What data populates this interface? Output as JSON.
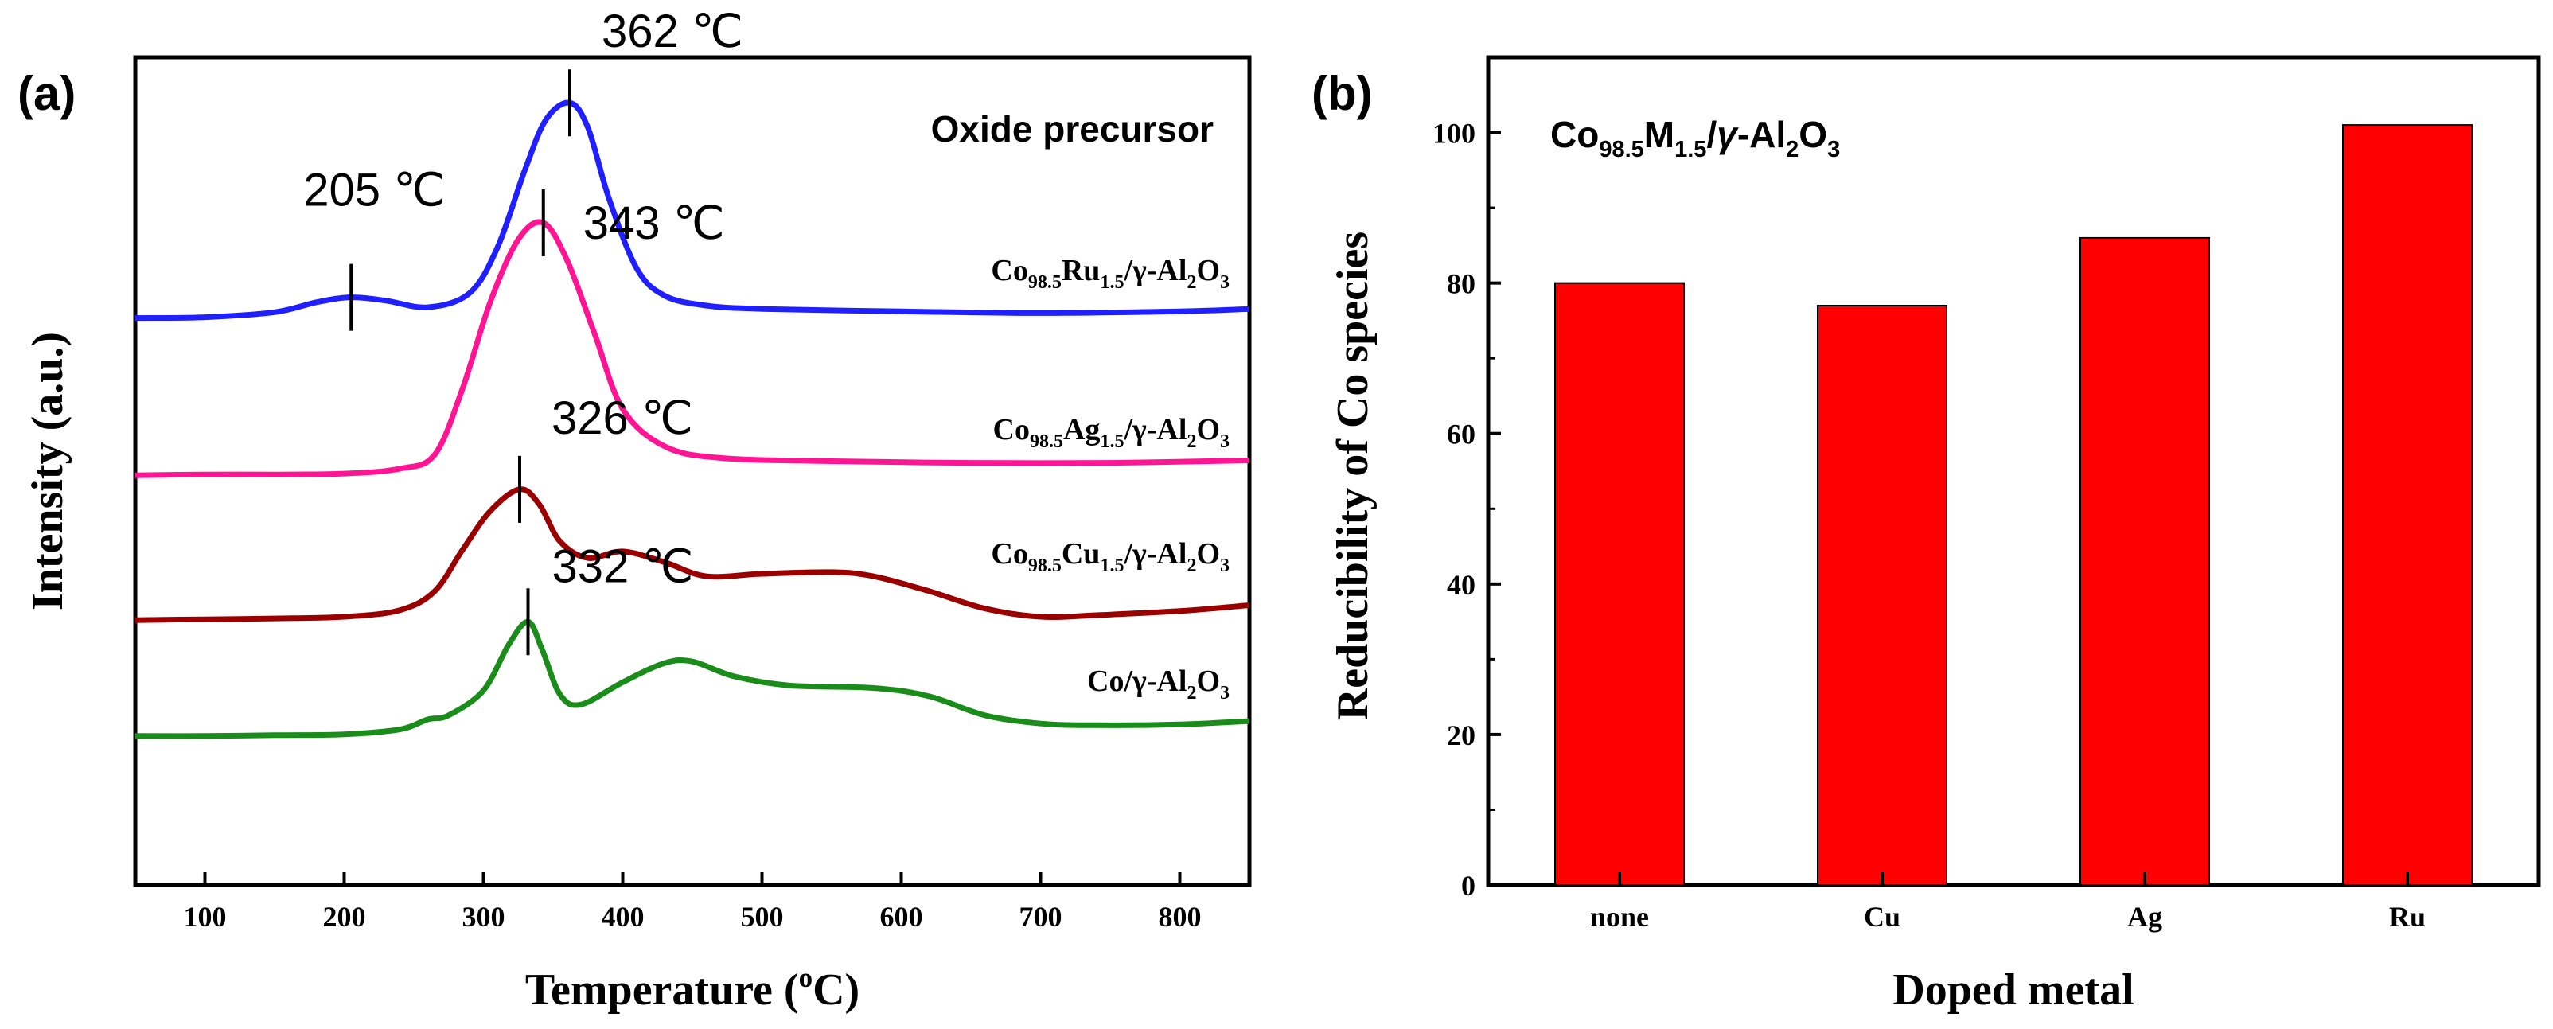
{
  "chart_data": [
    {
      "panel": "(a)",
      "type": "line",
      "title": "Oxide precursor",
      "xlabel": "Temperature (oC)",
      "xlabel_parts": [
        "Temperature (",
        "o",
        "C)"
      ],
      "ylabel": "Intensity (a.u.)",
      "xlim": [
        50,
        850
      ],
      "ylim": [
        0,
        100
      ],
      "x_ticks": [
        100,
        200,
        300,
        400,
        500,
        600,
        700,
        800
      ],
      "y_ticks_shown": false,
      "series": [
        {
          "name": "Co98.5Ru1.5/γ-Al2O3",
          "label_parts": [
            {
              "t": "Co",
              "s": "n"
            },
            {
              "t": "98.5",
              "s": "sub"
            },
            {
              "t": "Ru",
              "s": "n"
            },
            {
              "t": "1.5",
              "s": "sub"
            },
            {
              "t": "/γ-Al",
              "s": "n"
            },
            {
              "t": "2",
              "s": "sub"
            },
            {
              "t": "O",
              "s": "n"
            },
            {
              "t": "3",
              "s": "sub"
            }
          ],
          "color": "#1f1fff",
          "x": [
            50,
            100,
            150,
            180,
            205,
            230,
            260,
            290,
            310,
            330,
            345,
            362,
            375,
            390,
            410,
            430,
            460,
            500,
            600,
            700,
            800,
            850
          ],
          "y": [
            68.5,
            68.6,
            69.2,
            70.4,
            71.0,
            70.6,
            69.8,
            71.5,
            77.0,
            86.5,
            92.5,
            94.5,
            91.5,
            83.0,
            74.5,
            71.2,
            70.0,
            69.6,
            69.3,
            69.1,
            69.3,
            69.6
          ]
        },
        {
          "name": "Co98.5Ag1.5/γ-Al2O3",
          "label_parts": [
            {
              "t": "Co",
              "s": "n"
            },
            {
              "t": "98.5",
              "s": "sub"
            },
            {
              "t": "Ag",
              "s": "n"
            },
            {
              "t": "1.5",
              "s": "sub"
            },
            {
              "t": "/γ-Al",
              "s": "n"
            },
            {
              "t": "2",
              "s": "sub"
            },
            {
              "t": "O",
              "s": "n"
            },
            {
              "t": "3",
              "s": "sub"
            }
          ],
          "color": "#ff1493",
          "x": [
            50,
            100,
            150,
            200,
            240,
            265,
            285,
            305,
            325,
            343,
            360,
            380,
            400,
            430,
            470,
            550,
            650,
            750,
            850
          ],
          "y": [
            49.5,
            49.6,
            49.6,
            49.7,
            50.3,
            52.0,
            60.0,
            70.5,
            78.0,
            80.0,
            75.5,
            66.5,
            57.5,
            53.0,
            51.6,
            51.2,
            51.0,
            51.0,
            51.3
          ]
        },
        {
          "name": "Co98.5Cu1.5/γ-Al2O3",
          "label_parts": [
            {
              "t": "Co",
              "s": "n"
            },
            {
              "t": "98.5",
              "s": "sub"
            },
            {
              "t": "Cu",
              "s": "n"
            },
            {
              "t": "1.5",
              "s": "sub"
            },
            {
              "t": "/γ-Al",
              "s": "n"
            },
            {
              "t": "2",
              "s": "sub"
            },
            {
              "t": "O",
              "s": "n"
            },
            {
              "t": "3",
              "s": "sub"
            }
          ],
          "color": "#9b0000",
          "x": [
            50,
            100,
            150,
            200,
            240,
            265,
            285,
            305,
            326,
            340,
            355,
            375,
            400,
            430,
            460,
            500,
            550,
            580,
            620,
            660,
            700,
            740,
            800,
            850
          ],
          "y": [
            32.0,
            32.1,
            32.2,
            32.4,
            33.2,
            35.5,
            40.5,
            45.2,
            47.8,
            46.0,
            41.5,
            39.5,
            40.3,
            39.0,
            37.3,
            37.6,
            37.8,
            37.3,
            35.5,
            33.4,
            32.4,
            32.6,
            33.1,
            33.8
          ]
        },
        {
          "name": "Co/γ-Al2O3",
          "label_parts": [
            {
              "t": "Co/γ-Al",
              "s": "n"
            },
            {
              "t": "2",
              "s": "sub"
            },
            {
              "t": "O",
              "s": "n"
            },
            {
              "t": "3",
              "s": "sub"
            }
          ],
          "color": "#1a8c1a",
          "x": [
            50,
            100,
            150,
            200,
            240,
            260,
            275,
            300,
            318,
            332,
            342,
            355,
            370,
            400,
            430,
            450,
            480,
            520,
            580,
            620,
            660,
            700,
            740,
            800,
            850
          ],
          "y": [
            18.0,
            18.0,
            18.1,
            18.2,
            18.8,
            20.0,
            20.5,
            23.5,
            29.0,
            31.8,
            28.5,
            23.0,
            21.8,
            24.5,
            26.8,
            27.0,
            25.2,
            24.1,
            23.8,
            22.8,
            20.5,
            19.5,
            19.3,
            19.4,
            19.8
          ]
        }
      ],
      "peak_annotations": [
        {
          "series": 0,
          "x": 205,
          "label": "205 ℃"
        },
        {
          "series": 0,
          "x": 362,
          "label": "362 ℃"
        },
        {
          "series": 1,
          "x": 343,
          "label": "343 ℃"
        },
        {
          "series": 2,
          "x": 326,
          "label": "326 ℃"
        },
        {
          "series": 3,
          "x": 332,
          "label": "332 ℃"
        }
      ]
    },
    {
      "panel": "(b)",
      "type": "bar",
      "annotation": "Co98.5M1.5/γ-Al2O3",
      "annotation_parts": [
        {
          "t": "Co",
          "s": "n"
        },
        {
          "t": "98.5",
          "s": "sub"
        },
        {
          "t": "M",
          "s": "n"
        },
        {
          "t": "1.5",
          "s": "sub"
        },
        {
          "t": "/",
          "s": "n"
        },
        {
          "t": "γ",
          "s": "it"
        },
        {
          "t": "-Al",
          "s": "n"
        },
        {
          "t": "2",
          "s": "sub"
        },
        {
          "t": "O",
          "s": "n"
        },
        {
          "t": "3",
          "s": "sub"
        }
      ],
      "xlabel": "Doped metal",
      "ylabel": "Reducibility of Co species",
      "categories": [
        "none",
        "Cu",
        "Ag",
        "Ru"
      ],
      "values": [
        80,
        77,
        86,
        101
      ],
      "ylim": [
        0,
        110
      ],
      "y_ticks": [
        0,
        20,
        40,
        60,
        80,
        100
      ],
      "bar_color": "#ff0000"
    }
  ]
}
